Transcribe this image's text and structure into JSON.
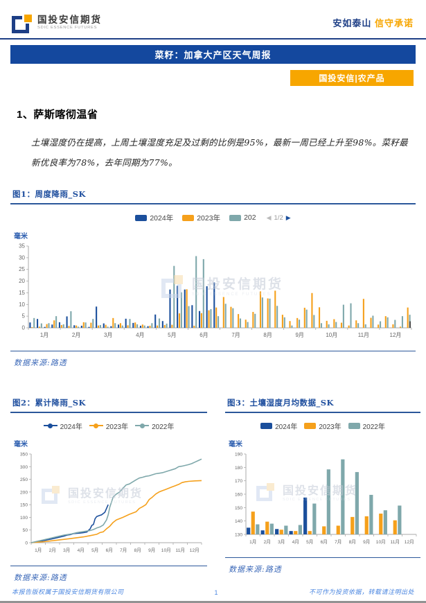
{
  "colors": {
    "blue2024": "#1b4f9c",
    "orange2023": "#f5a01b",
    "teal2022": "#7fa8ab",
    "navy": "#1e3f86",
    "banner": "#14489e",
    "badge": "#f7a600",
    "titleblue": "#1e4e9e",
    "ruleblue": "#2b579a",
    "sourceblue": "#3b68b8",
    "footerblue": "#4a86e0",
    "axis": "#aaaaaa",
    "tick": "#666666"
  },
  "header": {
    "logo_text": "国投安信期货",
    "logo_sub": "SDIC ESSENCE FUTURES",
    "slogan_left": "安如泰山",
    "slogan_right": "信守承诺"
  },
  "banner": {
    "title": "菜籽：加拿大产区天气周报"
  },
  "badge": {
    "label": "国投安信|农产品"
  },
  "section": {
    "number_title": "1、萨斯喀彻温省",
    "paragraph": "土壤湿度仍在提高，上周土壤湿度充足及过剩的比例是95%，最新一周已经上升至98%。菜籽最新优良率为78%，去年同期为77%。"
  },
  "figure1": {
    "title": "图1：周度降雨_SK",
    "unit": "毫米",
    "legend": [
      "2024年",
      "2023年",
      "202"
    ],
    "pagination": "1/2",
    "source": "数据来源:路透"
  },
  "figure2": {
    "title": "图2：累计降雨_SK",
    "unit": "毫米",
    "legend": [
      "2024年",
      "2023年",
      "2022年"
    ],
    "source": "数据来源:路透"
  },
  "figure3": {
    "title": "图3：土壤湿度月均数据_SK",
    "unit": "毫米",
    "legend": [
      "2024年",
      "2023年",
      "2022年"
    ],
    "source": "数据来源:路透"
  },
  "watermark": {
    "text": "国投安信期货",
    "sub": "SDIC ESSENCE FUTURES"
  },
  "footer": {
    "left": "本报告版权属于国投安信期货有限公司",
    "page": "1",
    "right": "不可作为投资依据，转载请注明出处"
  },
  "chart_data": [
    {
      "id": "chart1",
      "type": "bar",
      "title": "周度降雨_SK",
      "xlabel": "",
      "ylabel": "毫米",
      "ylim": [
        0,
        35
      ],
      "yticks": [
        0,
        5,
        10,
        15,
        20,
        25,
        30,
        35
      ],
      "month_labels": [
        "1月",
        "2月",
        "3月",
        "4月",
        "5月",
        "6月",
        "7月",
        "8月",
        "9月",
        "10月",
        "11月",
        "12月"
      ],
      "n_groups": 52,
      "grid": false,
      "legend_position": "top",
      "series": [
        {
          "name": "2024年",
          "color": "blue2024",
          "values": [
            2.3,
            3.8,
            0.4,
            1.4,
            2.4,
            4.9,
            1.1,
            0.9,
            0.4,
            9.1,
            1.9,
            0.7,
            1.4,
            3.9,
            2.1,
            0.9,
            0.7,
            5.7,
            2.9,
            16.4,
            18,
            16.4,
            9.7,
            7.2,
            17.8,
            19.4,
            null,
            null,
            null,
            null,
            null,
            null,
            null,
            null,
            null,
            null,
            null,
            null,
            null,
            null,
            null,
            null,
            null,
            null,
            null,
            null,
            null,
            null,
            null,
            null,
            null,
            null
          ]
        },
        {
          "name": "2023年",
          "color": "orange2023",
          "values": [
            0.3,
            0.5,
            1.6,
            3.2,
            1.2,
            0.8,
            1,
            2.4,
            2.2,
            1,
            1.3,
            4.2,
            2,
            1.1,
            2.3,
            1.4,
            0.9,
            1,
            1.2,
            1.3,
            6.2,
            16.5,
            0.9,
            6.3,
            7.5,
            8.7,
            13.2,
            9,
            5.9,
            3.5,
            6.8,
            15.6,
            12.6,
            15.9,
            5.6,
            2.9,
            4.2,
            8.6,
            14.9,
            8.8,
            3,
            3.7,
            2.2,
            1,
            3.2,
            12.4,
            4.3,
            1.4,
            5,
            1.5,
            0.5,
            8.7
          ]
        },
        {
          "name": "2022年",
          "color": "teal2022",
          "values": [
            4.2,
            1.9,
            2,
            5,
            1.5,
            7.1,
            0.5,
            2.3,
            3.8,
            1.2,
            0.5,
            2,
            1,
            3.8,
            1.5,
            1,
            2,
            4,
            1.8,
            26.5,
            15.2,
            9.3,
            30.7,
            29.4,
            8,
            5,
            10.3,
            8.4,
            4,
            2.5,
            6,
            13,
            12.5,
            9.4,
            4.5,
            1,
            3.5,
            7.8,
            5.5,
            2,
            1.5,
            2.5,
            9.9,
            10.5,
            2,
            1.5,
            5.2,
            2.8,
            4.5,
            3.4,
            5,
            5.6
          ]
        }
      ],
      "end_bar": {
        "value": 2.8,
        "color": "#4d4d4d"
      }
    },
    {
      "id": "chart2",
      "type": "line",
      "title": "累计降雨_SK",
      "xlabel": "",
      "ylabel": "毫米",
      "ylim": [
        0,
        350
      ],
      "yticks": [
        0,
        50,
        100,
        150,
        200,
        250,
        300,
        350
      ],
      "month_labels": [
        "1月",
        "2月",
        "3月",
        "4月",
        "5月",
        "6月",
        "7月",
        "8月",
        "9月",
        "10月",
        "11月",
        "12月"
      ],
      "x_domain": [
        0,
        52
      ],
      "grid": false,
      "legend_position": "top",
      "series": [
        {
          "name": "2024年",
          "color": "blue2024",
          "points": [
            [
              0,
              0
            ],
            [
              2,
              4
            ],
            [
              4,
              9
            ],
            [
              6,
              14
            ],
            [
              8,
              20
            ],
            [
              10,
              26
            ],
            [
              11,
              30
            ],
            [
              12,
              32
            ],
            [
              13,
              36
            ],
            [
              15,
              38
            ],
            [
              16,
              40
            ],
            [
              17,
              42
            ],
            [
              18,
              55
            ],
            [
              18.5,
              68
            ],
            [
              19,
              72
            ],
            [
              19.5,
              95
            ],
            [
              20,
              103
            ],
            [
              21,
              108
            ],
            [
              21.5,
              110
            ],
            [
              22,
              115
            ],
            [
              22.5,
              120
            ],
            [
              23,
              135
            ],
            [
              23.5,
              150
            ]
          ]
        },
        {
          "name": "2023年",
          "color": "orange2023",
          "points": [
            [
              0,
              0
            ],
            [
              4,
              4
            ],
            [
              8,
              10
            ],
            [
              12,
              16
            ],
            [
              16,
              23
            ],
            [
              18,
              28
            ],
            [
              20,
              33
            ],
            [
              21,
              40
            ],
            [
              22,
              43
            ],
            [
              23,
              55
            ],
            [
              24,
              65
            ],
            [
              25,
              80
            ],
            [
              26,
              90
            ],
            [
              28,
              100
            ],
            [
              30,
              112
            ],
            [
              32,
              122
            ],
            [
              33,
              135
            ],
            [
              34,
              142
            ],
            [
              35,
              150
            ],
            [
              36,
              170
            ],
            [
              37,
              180
            ],
            [
              38,
              192
            ],
            [
              39,
              200
            ],
            [
              40,
              205
            ],
            [
              41,
              210
            ],
            [
              42,
              215
            ],
            [
              43,
              220
            ],
            [
              44,
              225
            ],
            [
              45,
              230
            ],
            [
              46,
              237
            ],
            [
              47,
              240
            ],
            [
              48,
              242
            ],
            [
              50,
              244
            ],
            [
              52,
              245
            ]
          ]
        },
        {
          "name": "2022年",
          "color": "teal2022",
          "points": [
            [
              0,
              0
            ],
            [
              2,
              6
            ],
            [
              4,
              12
            ],
            [
              6,
              18
            ],
            [
              8,
              24
            ],
            [
              10,
              30
            ],
            [
              12,
              34
            ],
            [
              14,
              40
            ],
            [
              16,
              44
            ],
            [
              18,
              48
            ],
            [
              19,
              52
            ],
            [
              20,
              58
            ],
            [
              21,
              62
            ],
            [
              22,
              70
            ],
            [
              23,
              90
            ],
            [
              23.5,
              110
            ],
            [
              24,
              140
            ],
            [
              24.5,
              160
            ],
            [
              25,
              180
            ],
            [
              26,
              192
            ],
            [
              27,
              200
            ],
            [
              28,
              215
            ],
            [
              29,
              228
            ],
            [
              30,
              232
            ],
            [
              31,
              240
            ],
            [
              32,
              248
            ],
            [
              33,
              255
            ],
            [
              34,
              258
            ],
            [
              35,
              262
            ],
            [
              36,
              264
            ],
            [
              37,
              268
            ],
            [
              38,
              272
            ],
            [
              39,
              274
            ],
            [
              40,
              276
            ],
            [
              41,
              280
            ],
            [
              42,
              284
            ],
            [
              43,
              288
            ],
            [
              44,
              292
            ],
            [
              45,
              300
            ],
            [
              46,
              302
            ],
            [
              47,
              305
            ],
            [
              48,
              308
            ],
            [
              49,
              312
            ],
            [
              50,
              318
            ],
            [
              51,
              324
            ],
            [
              52,
              330
            ]
          ]
        }
      ]
    },
    {
      "id": "chart3",
      "type": "bar",
      "title": "土壤湿度月均数据_SK",
      "xlabel": "",
      "ylabel": "毫米",
      "ylim": [
        130,
        190
      ],
      "yticks": [
        130,
        140,
        150,
        160,
        170,
        180,
        190
      ],
      "month_labels": [
        "1月",
        "2月",
        "3月",
        "4月",
        "5月",
        "6月",
        "7月",
        "8月",
        "9月",
        "10月",
        "11月",
        "12月"
      ],
      "n_groups": 12,
      "grid": false,
      "legend_position": "top",
      "series": [
        {
          "name": "2024年",
          "color": "blue2024",
          "values": [
            135,
            133,
            134,
            132.5,
            157.5,
            null,
            null,
            null,
            null,
            null,
            null,
            null
          ]
        },
        {
          "name": "2023年",
          "color": "orange2023",
          "values": [
            147,
            139.5,
            133.5,
            132.5,
            132.5,
            136,
            136.5,
            143,
            143.5,
            145.5,
            140.5,
            null
          ]
        },
        {
          "name": "2022年",
          "color": "teal2022",
          "values": [
            137.5,
            138,
            136.5,
            137,
            153,
            178.5,
            186,
            176.5,
            159.5,
            148,
            151.5,
            null
          ]
        }
      ]
    }
  ]
}
